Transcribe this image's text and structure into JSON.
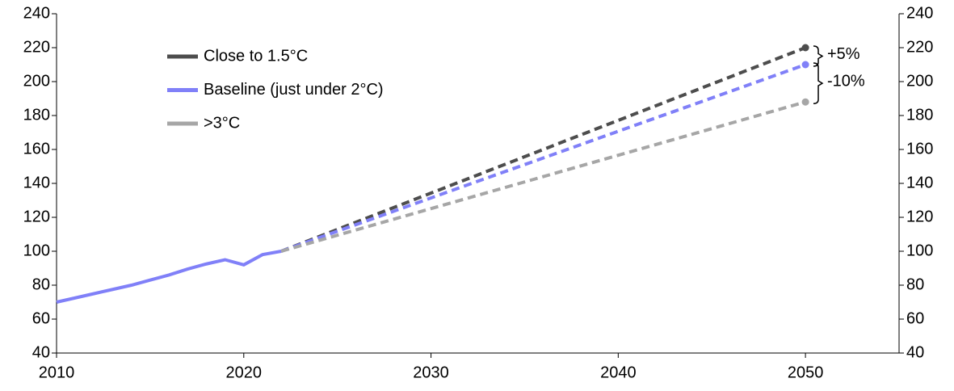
{
  "chart_data": {
    "type": "line",
    "x": [
      2010,
      2011,
      2012,
      2013,
      2014,
      2015,
      2016,
      2017,
      2018,
      2019,
      2020,
      2021,
      2022,
      2050
    ],
    "series": [
      {
        "name": "Close to 1.5°C",
        "color": "#4d4d4d",
        "values": [
          null,
          null,
          null,
          null,
          null,
          null,
          null,
          null,
          null,
          null,
          null,
          null,
          100,
          220
        ]
      },
      {
        "name": "Baseline (just under 2°C)",
        "color": "#8080f8",
        "values": [
          70,
          72.5,
          75,
          77.5,
          80,
          83,
          86,
          89.5,
          92.5,
          95,
          92,
          98,
          100,
          210
        ]
      },
      {
        "name": ">3°C",
        "color": "#a6a6a6",
        "values": [
          null,
          null,
          null,
          null,
          null,
          null,
          null,
          null,
          null,
          null,
          null,
          null,
          100,
          188
        ]
      }
    ],
    "dashed_after": 2022,
    "annotations": [
      "+5%",
      "-10%"
    ],
    "xlim": [
      2010,
      2055
    ],
    "xticks": [
      2010,
      2020,
      2030,
      2040,
      2050
    ],
    "ylim": [
      40,
      240
    ],
    "yticks": [
      40,
      60,
      80,
      100,
      120,
      140,
      160,
      180,
      200,
      220,
      240
    ],
    "y2lim": [
      40,
      240
    ],
    "y2ticks": [
      40,
      60,
      80,
      100,
      120,
      140,
      160,
      180,
      200,
      220,
      240
    ],
    "legend": "upper left",
    "grid": false
  }
}
